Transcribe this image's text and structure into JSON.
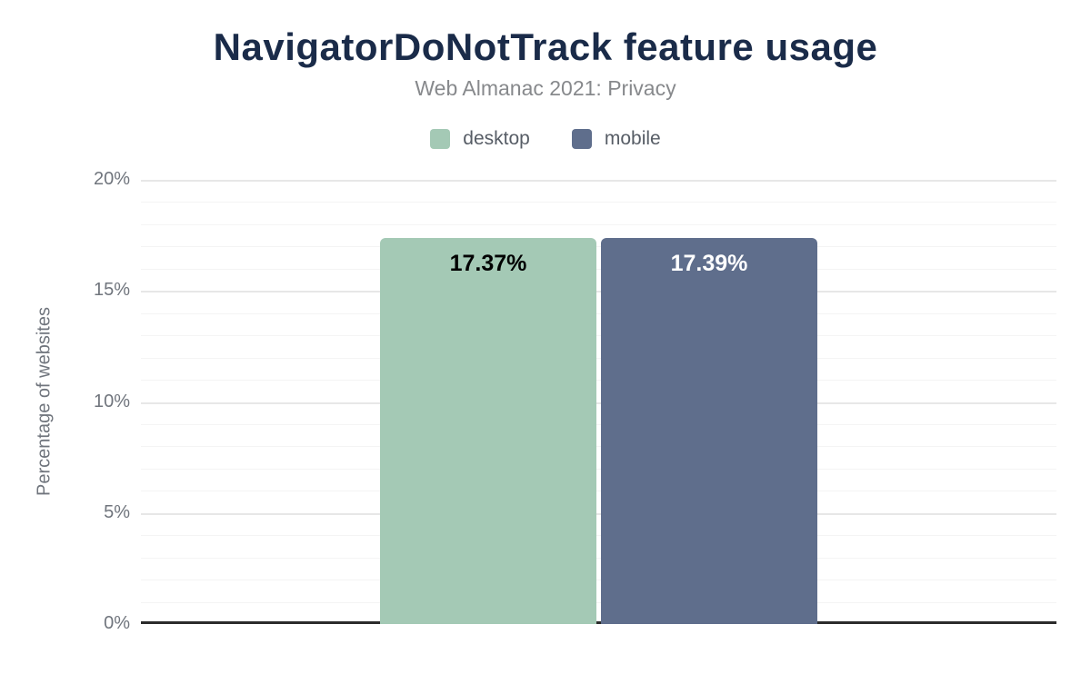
{
  "chart_data": {
    "type": "bar",
    "title": "NavigatorDoNotTrack feature usage",
    "subtitle": "Web Almanac 2021: Privacy",
    "ylabel": "Percentage of websites",
    "xlabel": "",
    "categories": [
      "NavigatorDoNotTrack"
    ],
    "series": [
      {
        "name": "desktop",
        "value": 17.37,
        "label": "17.37%",
        "color": "#a4c9b5",
        "label_color": "#000000"
      },
      {
        "name": "mobile",
        "value": 17.39,
        "label": "17.39%",
        "color": "#5f6e8c",
        "label_color": "#ffffff"
      }
    ],
    "ylim": [
      0,
      20
    ],
    "yticks": [
      {
        "value": 0,
        "label": "0%"
      },
      {
        "value": 5,
        "label": "5%"
      },
      {
        "value": 10,
        "label": "10%"
      },
      {
        "value": 15,
        "label": "15%"
      },
      {
        "value": 20,
        "label": "20%"
      }
    ],
    "minor_tick_step": 1,
    "grid": true,
    "legend_position": "top"
  },
  "colors": {
    "background": "#ffffff",
    "title": "#1a2b49",
    "subtitle": "#87898c",
    "tick_text": "#70757d",
    "legend_text": "#575d66",
    "grid_major": "#e7e7e7",
    "grid_minor": "#f4f4f4",
    "axis_line": "#2b2b2b"
  }
}
